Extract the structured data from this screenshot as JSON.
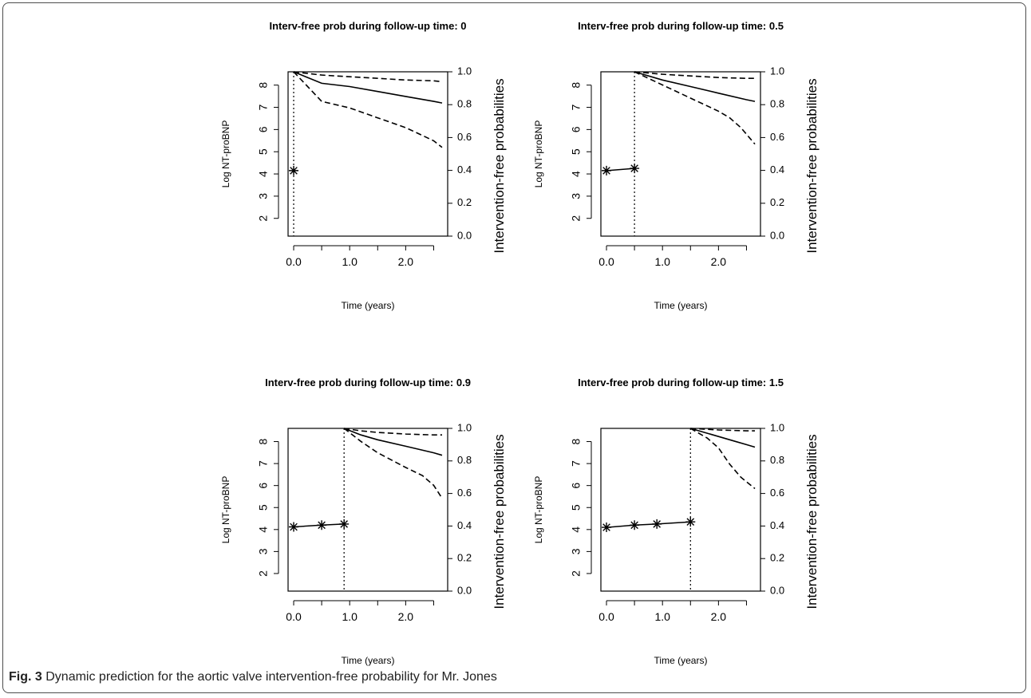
{
  "figure": {
    "caption_label": "Fig. 3",
    "caption_text": "Dynamic prediction for the aortic valve intervention-free probability for Mr. Jones"
  },
  "chart_data": [
    {
      "type": "line",
      "title": "Interv-free prob during follow-up time: 0",
      "xlabel": "Time (years)",
      "ylabel_left": "Log NT-proBNP",
      "ylabel_right": "Intervention-free probabilities",
      "x_ticks": [
        "0.0",
        "1.0",
        "2.0"
      ],
      "y_left_ticks": [
        "2",
        "3",
        "4",
        "5",
        "6",
        "7",
        "8"
      ],
      "y_right_ticks": [
        "0.0",
        "0.2",
        "0.4",
        "0.6",
        "0.8",
        "1.0"
      ],
      "xlim": [
        -0.1,
        2.75
      ],
      "ylim_left": [
        1.2,
        8.6
      ],
      "ylim_right": [
        0.0,
        1.0
      ],
      "follow_up_time": 0,
      "observations": {
        "x": [
          0.0
        ],
        "y": [
          4.15
        ]
      },
      "series": [
        {
          "role": "estimate",
          "style": "solid",
          "x": [
            0.0,
            0.5,
            1.0,
            1.5,
            2.0,
            2.5,
            2.65
          ],
          "y": [
            1.0,
            0.93,
            0.91,
            0.88,
            0.85,
            0.82,
            0.81
          ]
        },
        {
          "role": "upper",
          "style": "dashed",
          "x": [
            0.0,
            0.5,
            1.0,
            1.5,
            2.0,
            2.5,
            2.65
          ],
          "y": [
            1.0,
            0.98,
            0.97,
            0.96,
            0.95,
            0.945,
            0.94
          ]
        },
        {
          "role": "lower",
          "style": "dashed",
          "x": [
            0.0,
            0.5,
            1.0,
            1.5,
            2.0,
            2.5,
            2.65
          ],
          "y": [
            1.0,
            0.82,
            0.78,
            0.72,
            0.66,
            0.58,
            0.54
          ]
        }
      ]
    },
    {
      "type": "line",
      "title": "Interv-free prob during follow-up time: 0.5",
      "xlabel": "Time (years)",
      "ylabel_left": "Log NT-proBNP",
      "ylabel_right": "Intervention-free probabilities",
      "x_ticks": [
        "0.0",
        "1.0",
        "2.0"
      ],
      "y_left_ticks": [
        "2",
        "3",
        "4",
        "5",
        "6",
        "7",
        "8"
      ],
      "y_right_ticks": [
        "0.0",
        "0.2",
        "0.4",
        "0.6",
        "0.8",
        "1.0"
      ],
      "xlim": [
        -0.1,
        2.75
      ],
      "ylim_left": [
        1.2,
        8.6
      ],
      "ylim_right": [
        0.0,
        1.0
      ],
      "follow_up_time": 0.5,
      "observations": {
        "x": [
          0.0,
          0.5
        ],
        "y": [
          4.15,
          4.25
        ]
      },
      "series": [
        {
          "role": "estimate",
          "style": "solid",
          "x": [
            0.5,
            1.0,
            1.5,
            2.0,
            2.5,
            2.65
          ],
          "y": [
            1.0,
            0.95,
            0.91,
            0.87,
            0.83,
            0.82
          ]
        },
        {
          "role": "upper",
          "style": "dashed",
          "x": [
            0.5,
            1.0,
            1.5,
            2.0,
            2.5,
            2.65
          ],
          "y": [
            1.0,
            0.985,
            0.975,
            0.965,
            0.96,
            0.96
          ]
        },
        {
          "role": "lower",
          "style": "dashed",
          "x": [
            0.5,
            1.0,
            1.5,
            2.0,
            2.2,
            2.4,
            2.65
          ],
          "y": [
            1.0,
            0.92,
            0.84,
            0.76,
            0.72,
            0.66,
            0.56
          ]
        }
      ]
    },
    {
      "type": "line",
      "title": "Interv-free prob during follow-up time: 0.9",
      "xlabel": "Time (years)",
      "ylabel_left": "Log NT-proBNP",
      "ylabel_right": "Intervention-free probabilities",
      "x_ticks": [
        "0.0",
        "1.0",
        "2.0"
      ],
      "y_left_ticks": [
        "2",
        "3",
        "4",
        "5",
        "6",
        "7",
        "8"
      ],
      "y_right_ticks": [
        "0.0",
        "0.2",
        "0.4",
        "0.6",
        "0.8",
        "1.0"
      ],
      "xlim": [
        -0.1,
        2.75
      ],
      "ylim_left": [
        1.2,
        8.6
      ],
      "ylim_right": [
        0.0,
        1.0
      ],
      "follow_up_time": 0.9,
      "observations": {
        "x": [
          0.0,
          0.5,
          0.9
        ],
        "y": [
          4.12,
          4.2,
          4.25
        ]
      },
      "series": [
        {
          "role": "estimate",
          "style": "solid",
          "x": [
            0.9,
            1.2,
            1.5,
            2.0,
            2.5,
            2.65
          ],
          "y": [
            1.0,
            0.96,
            0.93,
            0.89,
            0.85,
            0.835
          ]
        },
        {
          "role": "upper",
          "style": "dashed",
          "x": [
            0.9,
            1.2,
            1.5,
            2.0,
            2.5,
            2.65
          ],
          "y": [
            1.0,
            0.985,
            0.975,
            0.965,
            0.96,
            0.96
          ]
        },
        {
          "role": "lower",
          "style": "dashed",
          "x": [
            0.9,
            1.2,
            1.5,
            2.0,
            2.3,
            2.5,
            2.65
          ],
          "y": [
            1.0,
            0.92,
            0.85,
            0.76,
            0.71,
            0.65,
            0.57
          ]
        }
      ]
    },
    {
      "type": "line",
      "title": "Interv-free prob during follow-up time: 1.5",
      "xlabel": "Time (years)",
      "ylabel_left": "Log NT-proBNP",
      "ylabel_right": "Intervention-free probabilities",
      "x_ticks": [
        "0.0",
        "1.0",
        "2.0"
      ],
      "y_left_ticks": [
        "2",
        "3",
        "4",
        "5",
        "6",
        "7",
        "8"
      ],
      "y_right_ticks": [
        "0.0",
        "0.2",
        "0.4",
        "0.6",
        "0.8",
        "1.0"
      ],
      "xlim": [
        -0.1,
        2.75
      ],
      "ylim_left": [
        1.2,
        8.6
      ],
      "ylim_right": [
        0.0,
        1.0
      ],
      "follow_up_time": 1.5,
      "observations": {
        "x": [
          0.0,
          0.5,
          0.9,
          1.5
        ],
        "y": [
          4.1,
          4.2,
          4.25,
          4.35
        ]
      },
      "series": [
        {
          "role": "estimate",
          "style": "solid",
          "x": [
            1.5,
            1.8,
            2.0,
            2.3,
            2.5,
            2.65
          ],
          "y": [
            1.0,
            0.97,
            0.95,
            0.92,
            0.9,
            0.885
          ]
        },
        {
          "role": "upper",
          "style": "dashed",
          "x": [
            1.5,
            2.0,
            2.5,
            2.65
          ],
          "y": [
            1.0,
            0.99,
            0.985,
            0.985
          ]
        },
        {
          "role": "lower",
          "style": "dashed",
          "x": [
            1.5,
            1.8,
            2.0,
            2.2,
            2.4,
            2.65
          ],
          "y": [
            1.0,
            0.94,
            0.88,
            0.78,
            0.7,
            0.63
          ]
        }
      ]
    }
  ]
}
